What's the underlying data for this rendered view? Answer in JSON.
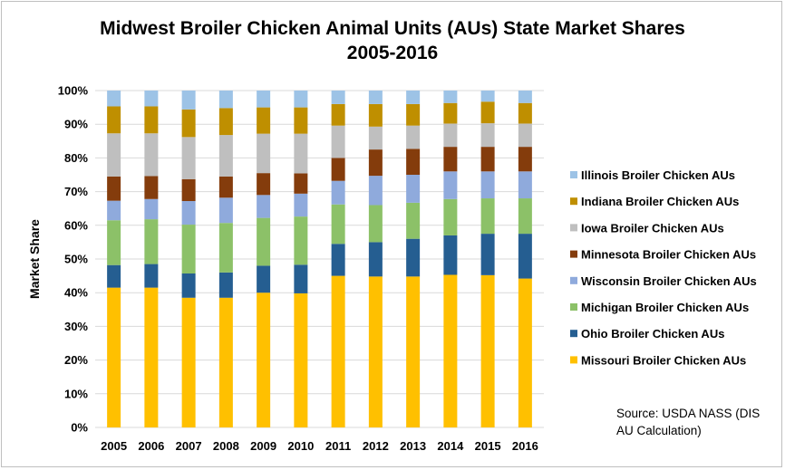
{
  "chart_data": {
    "type": "bar",
    "stacked": true,
    "title_line1": "Midwest Broiler Chicken Animal Units (AUs) State Market Shares",
    "title_line2": "2005-2016",
    "xlabel": "",
    "ylabel": "Market Share",
    "ylim": [
      0,
      100
    ],
    "yticks": [
      "0%",
      "10%",
      "20%",
      "30%",
      "40%",
      "50%",
      "60%",
      "70%",
      "80%",
      "90%",
      "100%"
    ],
    "grid": true,
    "legend_position": "right",
    "categories": [
      "2005",
      "2006",
      "2007",
      "2008",
      "2009",
      "2010",
      "2011",
      "2012",
      "2013",
      "2014",
      "2015",
      "2016"
    ],
    "series": [
      {
        "name": "Missouri Broiler Chicken AUs",
        "color": "#ffc000",
        "values": [
          41.5,
          41.5,
          38.5,
          38.5,
          40,
          39.8,
          45,
          44.8,
          44.8,
          45.3,
          45.2,
          44.2
        ]
      },
      {
        "name": "Ohio Broiler Chicken AUs",
        "color": "#255e91",
        "values": [
          6.7,
          7,
          7.2,
          7.5,
          8,
          8.5,
          9.5,
          10.2,
          11.2,
          11.7,
          12.3,
          13.3
        ]
      },
      {
        "name": "Michigan Broiler Chicken AUs",
        "color": "#8cc168",
        "values": [
          13.3,
          13.3,
          14.5,
          14.7,
          14.2,
          14.3,
          11.7,
          11,
          10.7,
          10.8,
          10.5,
          10.5
        ]
      },
      {
        "name": "Wisconsin Broiler Chicken AUs",
        "color": "#8faadc",
        "values": [
          5.8,
          6,
          7,
          7.5,
          6.8,
          6.8,
          7,
          8.7,
          8.3,
          8.2,
          8,
          8
        ]
      },
      {
        "name": "Minnesota Broiler Chicken AUs",
        "color": "#843c0c",
        "values": [
          7.2,
          6.8,
          6.5,
          6.3,
          6.5,
          6,
          6.8,
          7.8,
          7.7,
          7.3,
          7.3,
          7.3
        ]
      },
      {
        "name": "Iowa Broiler Chicken AUs",
        "color": "#bfbfbf",
        "values": [
          12.8,
          12.7,
          12.5,
          12.3,
          11.7,
          11.8,
          9.6,
          6.8,
          6.9,
          6.9,
          7,
          6.9
        ]
      },
      {
        "name": "Indiana Broiler Chicken AUs",
        "color": "#bf8f00",
        "values": [
          8,
          8,
          8.2,
          8,
          7.8,
          7.8,
          6.4,
          6.7,
          6.4,
          6.1,
          6.4,
          6.1
        ]
      },
      {
        "name": "Illinois Broiler Chicken AUs",
        "color": "#9dc3e6",
        "values": [
          4.7,
          4.7,
          5.6,
          5.2,
          5,
          5,
          4,
          4,
          4,
          3.7,
          3.3,
          3.7
        ]
      }
    ],
    "legend_order": [
      "Illinois Broiler Chicken AUs",
      "Indiana Broiler Chicken AUs",
      "Iowa Broiler Chicken AUs",
      "Minnesota Broiler Chicken AUs",
      "Wisconsin Broiler Chicken AUs",
      "Michigan Broiler Chicken AUs",
      "Ohio Broiler Chicken AUs",
      "Missouri Broiler Chicken AUs"
    ]
  },
  "source": {
    "line1": "Source: USDA NASS (DIS",
    "line2": "AU Calculation)"
  }
}
